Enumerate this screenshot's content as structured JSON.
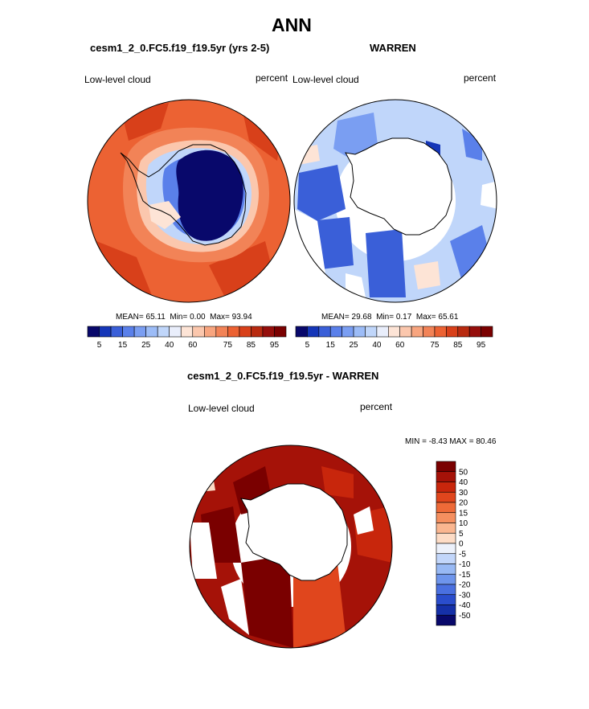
{
  "page_title": "ANN",
  "panel_left": {
    "case": "cesm1_2_0.FC5.f19_f19.5yr (yrs 2-5)",
    "left_label": "Low-level cloud",
    "right_label": "percent",
    "stats": {
      "mean_label": "MEAN=",
      "mean": "65.11",
      "min_label": "Min=",
      "min": "0.00",
      "max_label": "Max=",
      "max": "93.94"
    }
  },
  "panel_right": {
    "case": "WARREN",
    "left_label": "Low-level cloud",
    "right_label": "percent",
    "stats": {
      "mean_label": "MEAN=",
      "mean": "29.68",
      "min_label": "Min=",
      "min": "0.17",
      "max_label": "Max=",
      "max": "65.61"
    }
  },
  "panel_diff": {
    "case": "cesm1_2_0.FC5.f19_f19.5yr - WARREN",
    "left_label": "Low-level cloud",
    "right_label": "percent",
    "minmax": "MIN =  -8.43 MAX =  80.46"
  },
  "chart_data": [
    {
      "type": "heatmap",
      "projection": "south-polar-stereographic",
      "title": "cesm1_2_0.FC5.f19_f19.5yr (yrs 2-5)",
      "variable": "Low-level cloud",
      "units": "percent",
      "mean": 65.11,
      "min": 0.0,
      "max": 93.94,
      "colorbar": {
        "orientation": "horizontal",
        "levels": [
          5,
          10,
          15,
          20,
          25,
          30,
          40,
          50,
          60,
          65,
          70,
          75,
          80,
          85,
          90,
          95
        ],
        "tick_labels": [
          "5",
          "15",
          "25",
          "40",
          "60",
          "75",
          "85",
          "95"
        ],
        "colors": [
          "#08086b",
          "#1536b8",
          "#3a5fd8",
          "#5a80ea",
          "#7a9ef2",
          "#9cbcf7",
          "#c0d6fa",
          "#e9eefb",
          "#fde4d6",
          "#fbc7ad",
          "#f8a57f",
          "#f28357",
          "#ec6233",
          "#d8401a",
          "#b82a10",
          "#950e0b",
          "#7a0000"
        ]
      }
    },
    {
      "type": "heatmap",
      "projection": "south-polar-stereographic",
      "title": "WARREN",
      "variable": "Low-level cloud",
      "units": "percent",
      "mean": 29.68,
      "min": 0.17,
      "max": 65.61,
      "colorbar": {
        "orientation": "horizontal",
        "levels": [
          5,
          10,
          15,
          20,
          25,
          30,
          40,
          50,
          60,
          65,
          70,
          75,
          80,
          85,
          90,
          95
        ],
        "tick_labels": [
          "5",
          "15",
          "25",
          "40",
          "60",
          "75",
          "85",
          "95"
        ],
        "colors": [
          "#08086b",
          "#1536b8",
          "#3a5fd8",
          "#5a80ea",
          "#7a9ef2",
          "#9cbcf7",
          "#c0d6fa",
          "#e9eefb",
          "#fde4d6",
          "#fbc7ad",
          "#f8a57f",
          "#f28357",
          "#ec6233",
          "#d8401a",
          "#b82a10",
          "#950e0b",
          "#7a0000"
        ]
      }
    },
    {
      "type": "heatmap",
      "projection": "south-polar-stereographic",
      "title": "cesm1_2_0.FC5.f19_f19.5yr - WARREN",
      "variable": "Low-level cloud",
      "units": "percent",
      "min": -8.43,
      "max": 80.46,
      "colorbar": {
        "orientation": "vertical",
        "tick_labels": [
          "50",
          "40",
          "30",
          "20",
          "15",
          "10",
          "5",
          "0",
          "-5",
          "-10",
          "-15",
          "-20",
          "-30",
          "-40",
          "-50"
        ],
        "colors": [
          "#7a0000",
          "#a51208",
          "#c8260c",
          "#e0461d",
          "#ee6a38",
          "#f58f5f",
          "#fab690",
          "#fddcc6",
          "#ecf1fb",
          "#c2d6fa",
          "#98b9f4",
          "#6e95ec",
          "#4a70e0",
          "#2a4dcc",
          "#1530a8",
          "#08086b"
        ]
      }
    }
  ]
}
